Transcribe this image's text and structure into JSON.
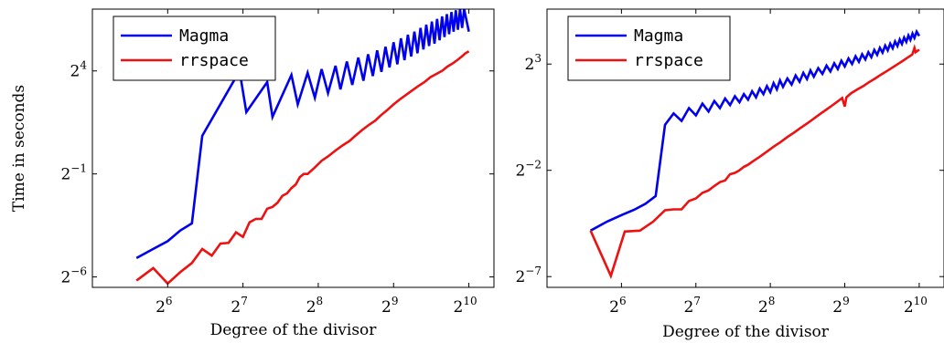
{
  "colors": {
    "magma": "#0000ee",
    "rrspace": "#ee1111",
    "frame": "#000000"
  },
  "chart_data": [
    {
      "type": "line",
      "xscale": "log2",
      "yscale": "log2",
      "xlim": [
        32,
        1290
      ],
      "ylim": [
        0.011,
        128
      ],
      "xticks": [
        {
          "value": 64,
          "base": "2",
          "exp": "6"
        },
        {
          "value": 128,
          "base": "2",
          "exp": "7"
        },
        {
          "value": 256,
          "base": "2",
          "exp": "8"
        },
        {
          "value": 512,
          "base": "2",
          "exp": "9"
        },
        {
          "value": 1024,
          "base": "2",
          "exp": "10"
        }
      ],
      "yticks": [
        {
          "value": 0.015625,
          "base": "2",
          "exp": "−6"
        },
        {
          "value": 0.5,
          "base": "2",
          "exp": "−1"
        },
        {
          "value": 16,
          "base": "2",
          "exp": "4"
        }
      ],
      "xlabel": "Degree of the divisor",
      "ylabel": "Time in seconds",
      "legend_position": "top-left",
      "series": [
        {
          "name": "Magma",
          "color": "#0000ee",
          "points": [
            [
              48,
              0.0295
            ],
            [
              56,
              0.04
            ],
            [
              64,
              0.052
            ],
            [
              72,
              0.075
            ],
            [
              80,
              0.095
            ],
            [
              88,
              1.8
            ],
            [
              124,
              16
            ],
            [
              132,
              4.0
            ],
            [
              160,
              11
            ],
            [
              168,
              3.4
            ],
            [
              200,
              14
            ],
            [
              212,
              5.2
            ],
            [
              232,
              15
            ],
            [
              248,
              6.5
            ],
            [
              264,
              17
            ],
            [
              280,
              7.6
            ],
            [
              300,
              19
            ],
            [
              314,
              8.6
            ],
            [
              333,
              22
            ],
            [
              350,
              10.0
            ],
            [
              370,
              25
            ],
            [
              388,
              11.5
            ],
            [
              405,
              28
            ],
            [
              423,
              13.5
            ],
            [
              440,
              32
            ],
            [
              458,
              15.5
            ],
            [
              475,
              36
            ],
            [
              493,
              18
            ],
            [
              512,
              42
            ],
            [
              530,
              20
            ],
            [
              548,
              48
            ],
            [
              566,
              23
            ],
            [
              584,
              54
            ],
            [
              602,
              26
            ],
            [
              620,
              60
            ],
            [
              638,
              29
            ],
            [
              656,
              68
            ],
            [
              674,
              33
            ],
            [
              692,
              76
            ],
            [
              710,
              37
            ],
            [
              728,
              84
            ],
            [
              746,
              40
            ],
            [
              764,
              92
            ],
            [
              782,
              45
            ],
            [
              800,
              100
            ],
            [
              818,
              50
            ],
            [
              836,
              108
            ],
            [
              854,
              55
            ],
            [
              872,
              116
            ],
            [
              890,
              60
            ],
            [
              908,
              123
            ],
            [
              926,
              64
            ],
            [
              944,
              128
            ],
            [
              962,
              68
            ],
            [
              980,
              128
            ],
            [
              1000,
              90
            ],
            [
              1024,
              60
            ]
          ]
        },
        {
          "name": "rrspace",
          "color": "#ee1111",
          "points": [
            [
              48,
              0.0138
            ],
            [
              56,
              0.021
            ],
            [
              64,
              0.0125
            ],
            [
              72,
              0.0185
            ],
            [
              80,
              0.025
            ],
            [
              88,
              0.04
            ],
            [
              96,
              0.032
            ],
            [
              104,
              0.048
            ],
            [
              112,
              0.049
            ],
            [
              120,
              0.07
            ],
            [
              128,
              0.06
            ],
            [
              136,
              0.098
            ],
            [
              144,
              0.11
            ],
            [
              152,
              0.11
            ],
            [
              160,
              0.155
            ],
            [
              168,
              0.165
            ],
            [
              176,
              0.19
            ],
            [
              184,
              0.24
            ],
            [
              192,
              0.26
            ],
            [
              200,
              0.31
            ],
            [
              208,
              0.35
            ],
            [
              216,
              0.45
            ],
            [
              224,
              0.5
            ],
            [
              232,
              0.5
            ],
            [
              248,
              0.62
            ],
            [
              264,
              0.78
            ],
            [
              280,
              0.9
            ],
            [
              300,
              1.1
            ],
            [
              320,
              1.3
            ],
            [
              340,
              1.5
            ],
            [
              360,
              1.8
            ],
            [
              384,
              2.2
            ],
            [
              408,
              2.6
            ],
            [
              432,
              3.0
            ],
            [
              456,
              3.6
            ],
            [
              480,
              4.2
            ],
            [
              512,
              5.2
            ],
            [
              544,
              6.2
            ],
            [
              576,
              7.2
            ],
            [
              608,
              8.3
            ],
            [
              640,
              9.5
            ],
            [
              680,
              11
            ],
            [
              720,
              13
            ],
            [
              760,
              14.5
            ],
            [
              800,
              16
            ],
            [
              840,
              18.5
            ],
            [
              880,
              20.5
            ],
            [
              920,
              23
            ],
            [
              960,
              26
            ],
            [
              992,
              29
            ],
            [
              1024,
              31
            ]
          ]
        }
      ]
    },
    {
      "type": "line",
      "xscale": "log2",
      "yscale": "log2",
      "xlim": [
        32,
        1290
      ],
      "ylim": [
        0.0055,
        48
      ],
      "xticks": [
        {
          "value": 64,
          "base": "2",
          "exp": "6"
        },
        {
          "value": 128,
          "base": "2",
          "exp": "7"
        },
        {
          "value": 256,
          "base": "2",
          "exp": "8"
        },
        {
          "value": 512,
          "base": "2",
          "exp": "9"
        },
        {
          "value": 1024,
          "base": "2",
          "exp": "10"
        }
      ],
      "yticks": [
        {
          "value": 0.0078125,
          "base": "2",
          "exp": "−7"
        },
        {
          "value": 0.25,
          "base": "2",
          "exp": "−2"
        },
        {
          "value": 8,
          "base": "2",
          "exp": "3"
        }
      ],
      "xlabel": "Degree of the divisor",
      "ylabel": "",
      "legend_position": "top-left",
      "series": [
        {
          "name": "Magma",
          "color": "#0000ee",
          "points": [
            [
              48,
              0.035
            ],
            [
              56,
              0.047
            ],
            [
              64,
              0.058
            ],
            [
              72,
              0.069
            ],
            [
              80,
              0.084
            ],
            [
              88,
              0.108
            ],
            [
              96,
              1.1
            ],
            [
              104,
              1.6
            ],
            [
              112,
              1.25
            ],
            [
              120,
              1.9
            ],
            [
              128,
              1.5
            ],
            [
              136,
              2.2
            ],
            [
              144,
              1.7
            ],
            [
              152,
              2.4
            ],
            [
              160,
              1.9
            ],
            [
              168,
              2.6
            ],
            [
              176,
              2.1
            ],
            [
              184,
              2.8
            ],
            [
              192,
              2.3
            ],
            [
              200,
              3.0
            ],
            [
              208,
              2.5
            ],
            [
              216,
              3.3
            ],
            [
              224,
              2.7
            ],
            [
              232,
              3.6
            ],
            [
              240,
              3.0
            ],
            [
              248,
              3.9
            ],
            [
              256,
              3.2
            ],
            [
              264,
              4.3
            ],
            [
              272,
              3.5
            ],
            [
              280,
              4.7
            ],
            [
              288,
              3.8
            ],
            [
              300,
              5.0
            ],
            [
              312,
              4.1
            ],
            [
              324,
              5.5
            ],
            [
              336,
              4.5
            ],
            [
              348,
              6.0
            ],
            [
              360,
              4.9
            ],
            [
              372,
              6.5
            ],
            [
              384,
              5.3
            ],
            [
              400,
              7.0
            ],
            [
              416,
              5.8
            ],
            [
              432,
              7.6
            ],
            [
              448,
              6.3
            ],
            [
              464,
              8.2
            ],
            [
              480,
              6.8
            ],
            [
              496,
              8.9
            ],
            [
              512,
              7.4
            ],
            [
              530,
              9.6
            ],
            [
              548,
              8.0
            ],
            [
              566,
              10.3
            ],
            [
              584,
              8.6
            ],
            [
              602,
              11.0
            ],
            [
              620,
              9.3
            ],
            [
              638,
              11.8
            ],
            [
              656,
              10.0
            ],
            [
              674,
              12.7
            ],
            [
              692,
              10.8
            ],
            [
              710,
              13.6
            ],
            [
              728,
              11.6
            ],
            [
              746,
              14.6
            ],
            [
              764,
              12.5
            ],
            [
              782,
              15.6
            ],
            [
              800,
              13.4
            ],
            [
              818,
              16.7
            ],
            [
              836,
              14.4
            ],
            [
              854,
              17.8
            ],
            [
              872,
              15.4
            ],
            [
              890,
              19.0
            ],
            [
              908,
              16.5
            ],
            [
              926,
              20.3
            ],
            [
              944,
              17.6
            ],
            [
              962,
              21.6
            ],
            [
              980,
              18.8
            ],
            [
              1000,
              23.0
            ],
            [
              1024,
              20.0
            ]
          ]
        },
        {
          "name": "rrspace",
          "color": "#ee1111",
          "points": [
            [
              48,
              0.035
            ],
            [
              58,
              0.008
            ],
            [
              66,
              0.034
            ],
            [
              76,
              0.035
            ],
            [
              86,
              0.047
            ],
            [
              96,
              0.068
            ],
            [
              104,
              0.07
            ],
            [
              112,
              0.07
            ],
            [
              120,
              0.092
            ],
            [
              128,
              0.1
            ],
            [
              136,
              0.12
            ],
            [
              144,
              0.13
            ],
            [
              152,
              0.15
            ],
            [
              160,
              0.17
            ],
            [
              168,
              0.18
            ],
            [
              176,
              0.22
            ],
            [
              184,
              0.23
            ],
            [
              192,
              0.25
            ],
            [
              200,
              0.28
            ],
            [
              208,
              0.3
            ],
            [
              216,
              0.33
            ],
            [
              232,
              0.39
            ],
            [
              248,
              0.46
            ],
            [
              264,
              0.54
            ],
            [
              280,
              0.62
            ],
            [
              300,
              0.74
            ],
            [
              320,
              0.86
            ],
            [
              340,
              1.0
            ],
            [
              360,
              1.15
            ],
            [
              384,
              1.35
            ],
            [
              408,
              1.58
            ],
            [
              432,
              1.82
            ],
            [
              456,
              2.08
            ],
            [
              480,
              2.37
            ],
            [
              500,
              2.65
            ],
            [
              512,
              2.0
            ],
            [
              520,
              2.7
            ],
            [
              544,
              3.1
            ],
            [
              576,
              3.5
            ],
            [
              608,
              3.9
            ],
            [
              640,
              4.4
            ],
            [
              680,
              5.0
            ],
            [
              720,
              5.7
            ],
            [
              760,
              6.4
            ],
            [
              800,
              7.2
            ],
            [
              840,
              8.0
            ],
            [
              880,
              8.9
            ],
            [
              920,
              9.9
            ],
            [
              960,
              10.9
            ],
            [
              980,
              13.5
            ],
            [
              990,
              11.8
            ],
            [
              1024,
              12.8
            ]
          ]
        }
      ]
    }
  ]
}
